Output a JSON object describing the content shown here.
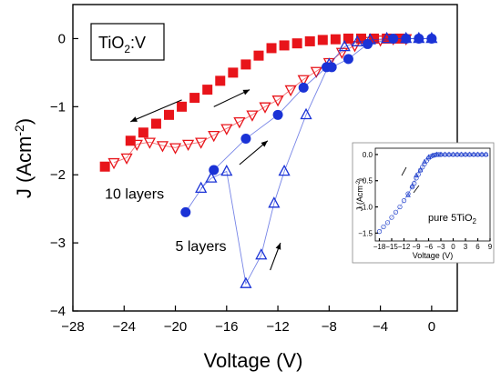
{
  "chart_data": [
    {
      "type": "scatter",
      "title": "",
      "xlabel": "Voltage (V)",
      "ylabel": "J (Acm",
      "ylabel_sup": "-2",
      "ylabel_close": ")",
      "xlim": [
        -28,
        2
      ],
      "ylim": [
        -4,
        0.5
      ],
      "xticks": [
        -28,
        -24,
        -20,
        -16,
        -12,
        -8,
        -4,
        0
      ],
      "xtick_labels": [
        "−28",
        "−24",
        "−20",
        "−16",
        "−12",
        "−8",
        "−4",
        "0"
      ],
      "yticks": [
        0,
        -1,
        -2,
        -3,
        -4
      ],
      "ytick_labels": [
        "0",
        "−1",
        "−2",
        "−3",
        "−4"
      ],
      "legend_box": {
        "text": "TiO",
        "sub": "2",
        "suffix": ":V"
      },
      "annotations": [
        {
          "text": "10 layers",
          "x": -25.5,
          "y": -2.35
        },
        {
          "text": "5 layers",
          "x": -20.0,
          "y": -3.12
        }
      ],
      "arrows": [
        {
          "from": [
            -19.5,
            -0.9
          ],
          "to": [
            -23.5,
            -1.22
          ]
        },
        {
          "from": [
            -17.0,
            -1.0
          ],
          "to": [
            -14.2,
            -0.75
          ]
        },
        {
          "from": [
            -15.0,
            -1.85
          ],
          "to": [
            -12.8,
            -1.5
          ]
        },
        {
          "from": [
            -12.6,
            -3.4
          ],
          "to": [
            -11.8,
            -3.0
          ]
        }
      ],
      "series": [
        {
          "marker": "square-filled",
          "color": "#e8141a",
          "line": "none",
          "x": [
            -25.5,
            -23.5,
            -22.5,
            -21.5,
            -20.5,
            -19.5,
            -18.5,
            -17.5,
            -16.5,
            -15.5,
            -14.5,
            -13.5,
            -12.5,
            -11.5,
            -10.5,
            -9.5,
            -8.5,
            -7.5,
            -6.5,
            -5.5,
            -4.5,
            -3.5,
            -2.5
          ],
          "y": [
            -1.88,
            -1.5,
            -1.38,
            -1.25,
            -1.12,
            -1.0,
            -0.87,
            -0.75,
            -0.62,
            -0.5,
            -0.38,
            -0.25,
            -0.14,
            -0.1,
            -0.07,
            -0.04,
            -0.02,
            -0.01,
            0,
            0,
            0,
            0,
            0
          ]
        },
        {
          "marker": "triangle-down-open",
          "color": "#e8141a",
          "line": "solid",
          "x": [
            -24.8,
            -23.8,
            -23.0,
            -22.0,
            -21.0,
            -20.0,
            -19.0,
            -18.0,
            -17.0,
            -16.0,
            -15.0,
            -14.0,
            -13.0,
            -12.0,
            -11.0,
            -10.0,
            -9.0,
            -8.0,
            -7.0,
            -6.0,
            -5.0,
            -4.0,
            -3.0,
            -2.0
          ],
          "y": [
            -1.82,
            -1.75,
            -1.55,
            -1.52,
            -1.57,
            -1.6,
            -1.55,
            -1.52,
            -1.42,
            -1.32,
            -1.22,
            -1.12,
            -1.0,
            -0.9,
            -0.75,
            -0.6,
            -0.48,
            -0.35,
            -0.2,
            -0.1,
            -0.04,
            -0.02,
            0,
            0
          ]
        },
        {
          "marker": "circle-filled",
          "color": "#1a32d6",
          "line": "solid",
          "x": [
            -19.2,
            -17.0,
            -14.5,
            -12.0,
            -10.0,
            -8.2,
            -7.8,
            -6.5,
            -5.0,
            -3.0,
            -2.0,
            -1.0,
            0.0
          ],
          "y": [
            -2.55,
            -1.93,
            -1.47,
            -1.12,
            -0.72,
            -0.42,
            -0.42,
            -0.3,
            -0.08,
            0,
            0,
            0,
            0
          ]
        },
        {
          "marker": "triangle-up-open",
          "color": "#1a32d6",
          "line": "solid",
          "x": [
            -18.0,
            -17.2,
            -16.0,
            -14.5,
            -13.3,
            -12.3,
            -11.5,
            -9.8,
            -8.0,
            -6.8,
            -5.8,
            -4.8,
            -3.5,
            -2.0,
            -1.0,
            0.0
          ],
          "y": [
            -2.2,
            -2.05,
            -1.95,
            -3.6,
            -3.18,
            -2.42,
            -1.95,
            -1.12,
            -0.38,
            -0.12,
            -0.05,
            -0.02,
            0,
            0,
            0,
            0
          ]
        }
      ]
    },
    {
      "type": "scatter",
      "title": "",
      "xlabel": "Voltage (V)",
      "ylabel": "J (Acm",
      "ylabel_sup": "-2",
      "ylabel_close": ")",
      "xlim": [
        -19,
        9
      ],
      "ylim": [
        -1.65,
        0.12
      ],
      "xticks": [
        -18,
        -15,
        -12,
        -9,
        -6,
        -3,
        0,
        3,
        6,
        9
      ],
      "xtick_labels": [
        "−18",
        "−15",
        "−12",
        "−9",
        "−6",
        "−3",
        "0",
        "3",
        "6",
        "9"
      ],
      "yticks": [
        0,
        -0.5,
        -1.0,
        -1.5
      ],
      "ytick_labels": [
        "0.0",
        "−0.5",
        "−1.0",
        "−1.5"
      ],
      "annotation": {
        "text": "pure 5TiO",
        "sub": "2"
      },
      "series": [
        {
          "marker": "circle-open",
          "color": "#2040cc",
          "line": "solid",
          "x": [
            -18.0,
            -17.0,
            -16.0,
            -15.0,
            -14.0,
            -13.0,
            -12.0,
            -11.0,
            -10.0,
            -9.5,
            -9.0,
            -8.5,
            -8.0,
            -7.5,
            -7.0,
            -6.5,
            -6.0,
            -5.5,
            -5.0,
            -4.5,
            -4.0,
            -3.5,
            -3.0,
            -2.0,
            -1.0,
            0.0,
            1.0,
            2.0,
            3.0,
            4.0,
            5.0,
            6.0,
            7.0,
            8.0
          ],
          "y": [
            -1.47,
            -1.38,
            -1.3,
            -1.2,
            -1.1,
            -1.0,
            -0.88,
            -0.75,
            -0.62,
            -0.55,
            -0.45,
            -0.38,
            -0.3,
            -0.24,
            -0.18,
            -0.12,
            -0.07,
            -0.04,
            -0.02,
            -0.01,
            0,
            0,
            0,
            0,
            0,
            0,
            0,
            0,
            0,
            0,
            0,
            0,
            0,
            0
          ]
        },
        {
          "marker": "triangle-up-open",
          "color": "#2040cc",
          "line": "solid",
          "x": [
            -11.0,
            -10.0,
            -9.0,
            -8.0,
            -7.0,
            -6.0,
            -5.0,
            -4.0,
            -3.0,
            -2.0,
            -1.0,
            0.0,
            1.0,
            2.0,
            3.0,
            4.0,
            5.0,
            6.0,
            7.0,
            8.0
          ],
          "y": [
            -0.78,
            -0.6,
            -0.4,
            -0.3,
            -0.14,
            -0.05,
            -0.02,
            0,
            0,
            0,
            0,
            0,
            0,
            0,
            0,
            0,
            0,
            0,
            0,
            0
          ]
        }
      ]
    }
  ]
}
